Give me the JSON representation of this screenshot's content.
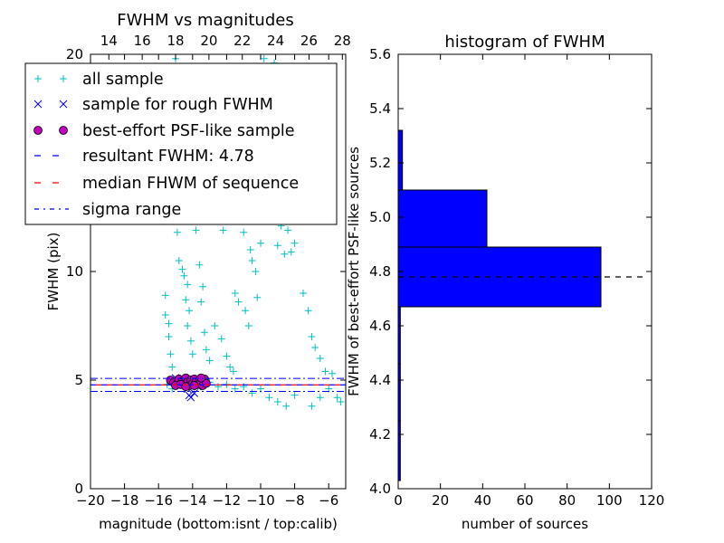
{
  "chart_data": [
    {
      "type": "scatter",
      "title": "FWHM vs magnitudes",
      "xlabel": "magnitude (bottom:isnt / top:calib)",
      "ylabel": "FWHM (pix)",
      "xlim": [
        -20,
        -5
      ],
      "ylim": [
        0,
        20
      ],
      "top_xlim": [
        12.9,
        28.2
      ],
      "x_ticks": [
        -20,
        -18,
        -16,
        -14,
        -12,
        -10,
        -8,
        -6
      ],
      "x_tick_labels": [
        "−20",
        "−18",
        "−16",
        "−14",
        "−12",
        "−10",
        "−8",
        "−6"
      ],
      "top_ticks": [
        14,
        16,
        18,
        20,
        22,
        24,
        26,
        28
      ],
      "y_ticks": [
        0,
        5,
        10,
        20
      ],
      "y_tick_labels": [
        "0",
        "5",
        "10",
        "20"
      ],
      "grid": false,
      "legend_position": "top-left",
      "legend": [
        {
          "label": "all sample",
          "style": "plus",
          "color": "#00bfbf"
        },
        {
          "label": "sample for rough FWHM",
          "style": "x",
          "color": "#0000ff"
        },
        {
          "label": "best-effort PSF-like sample",
          "style": "circle",
          "color": "#bf00bf"
        },
        {
          "label": "resultant FWHM: 4.78",
          "style": "dashed",
          "color": "#0000ff"
        },
        {
          "label": "median FHWM of sequence",
          "style": "dashed",
          "color": "#ff0000"
        },
        {
          "label": "sigma range",
          "style": "dashdot",
          "color": "#0000ff"
        }
      ],
      "hlines": {
        "resultant_fwhm": 4.78,
        "median_fwhm": 4.78,
        "sigma_range": [
          4.48,
          5.08
        ]
      },
      "series": [
        {
          "name": "all sample",
          "marker": "plus",
          "color": "#00bfbf",
          "points": [
            [
              -15.6,
              8.9
            ],
            [
              -15.6,
              8.0
            ],
            [
              -15.4,
              7.6
            ],
            [
              -15.4,
              7.0
            ],
            [
              -15.3,
              6.2
            ],
            [
              -15.2,
              5.6
            ],
            [
              -15.3,
              4.9
            ],
            [
              -15.2,
              4.6
            ],
            [
              -15.0,
              19.8
            ],
            [
              -14.7,
              14.6
            ],
            [
              -14.8,
              14.1
            ],
            [
              -14.5,
              13.3
            ],
            [
              -14.4,
              12.5
            ],
            [
              -14.9,
              11.8
            ],
            [
              -14.8,
              10.5
            ],
            [
              -14.6,
              10.1
            ],
            [
              -14.5,
              9.8
            ],
            [
              -14.3,
              9.4
            ],
            [
              -14.4,
              8.7
            ],
            [
              -14.2,
              8.2
            ],
            [
              -14.3,
              7.5
            ],
            [
              -14.1,
              6.8
            ],
            [
              -14.0,
              6.2
            ],
            [
              -13.9,
              12.9
            ],
            [
              -13.8,
              11.9
            ],
            [
              -13.6,
              10.3
            ],
            [
              -13.4,
              9.3
            ],
            [
              -13.5,
              8.6
            ],
            [
              -13.3,
              7.2
            ],
            [
              -13.2,
              6.4
            ],
            [
              -13.0,
              5.9
            ],
            [
              -12.6,
              12.5
            ],
            [
              -12.2,
              11.9
            ],
            [
              -12.7,
              7.5
            ],
            [
              -12.3,
              6.9
            ],
            [
              -12.0,
              6.1
            ],
            [
              -11.8,
              5.6
            ],
            [
              -11.6,
              5.4
            ],
            [
              -11.2,
              15.7
            ],
            [
              -11.0,
              11.8
            ],
            [
              -10.6,
              11.0
            ],
            [
              -10.5,
              10.5
            ],
            [
              -10.3,
              10.0
            ],
            [
              -11.5,
              9.0
            ],
            [
              -11.3,
              8.6
            ],
            [
              -10.9,
              8.2
            ],
            [
              -10.7,
              7.5
            ],
            [
              -10.2,
              8.8
            ],
            [
              -10.0,
              11.3
            ],
            [
              -9.8,
              19.8
            ],
            [
              -9.6,
              14.5
            ],
            [
              -9.5,
              13.5
            ],
            [
              -9.2,
              19.6
            ],
            [
              -9.3,
              16.3
            ],
            [
              -9.1,
              17.3
            ],
            [
              -9.0,
              11.2
            ],
            [
              -8.8,
              13.6
            ],
            [
              -8.8,
              12.1
            ],
            [
              -8.6,
              10.8
            ],
            [
              -8.4,
              11.9
            ],
            [
              -8.2,
              10.9
            ],
            [
              -8.0,
              11.3
            ],
            [
              -7.5,
              9.0
            ],
            [
              -7.2,
              8.2
            ],
            [
              -7.0,
              7.0
            ],
            [
              -6.8,
              6.5
            ],
            [
              -6.5,
              6.0
            ],
            [
              -6.2,
              5.4
            ],
            [
              -6.0,
              4.6
            ],
            [
              -5.8,
              5.3
            ],
            [
              -5.5,
              4.2
            ],
            [
              -5.3,
              4.0
            ],
            [
              -6.5,
              4.2
            ],
            [
              -7.0,
              3.8
            ],
            [
              -8.0,
              4.3
            ],
            [
              -8.5,
              3.8
            ],
            [
              -9.0,
              4.0
            ],
            [
              -9.5,
              4.2
            ],
            [
              -10.0,
              4.6
            ],
            [
              -10.5,
              4.4
            ],
            [
              -11.0,
              4.7
            ],
            [
              -11.5,
              4.6
            ],
            [
              -12.0,
              4.8
            ],
            [
              -12.5,
              4.7
            ],
            [
              -13.0,
              4.9
            ],
            [
              -13.5,
              4.8
            ],
            [
              -14.0,
              5.0
            ],
            [
              -14.5,
              4.7
            ],
            [
              -15.0,
              5.0
            ],
            [
              -15.5,
              4.8
            ]
          ]
        },
        {
          "name": "sample for rough FWHM",
          "marker": "x",
          "color": "#0000ff",
          "points": [
            [
              -14.2,
              4.3
            ],
            [
              -14.1,
              4.2
            ],
            [
              -13.9,
              4.4
            ],
            [
              -14.3,
              4.6
            ],
            [
              -13.7,
              4.7
            ],
            [
              -14.6,
              4.9
            ],
            [
              -15.0,
              5.1
            ],
            [
              -14.0,
              5.0
            ],
            [
              -13.5,
              4.8
            ]
          ]
        },
        {
          "name": "best-effort PSF-like sample",
          "marker": "circle",
          "color": "#bf00bf",
          "points": [
            [
              -15.3,
              5.0
            ],
            [
              -15.1,
              4.9
            ],
            [
              -14.9,
              4.85
            ],
            [
              -14.8,
              5.05
            ],
            [
              -14.6,
              4.95
            ],
            [
              -14.5,
              4.8
            ],
            [
              -14.4,
              5.1
            ],
            [
              -14.3,
              4.9
            ],
            [
              -14.2,
              4.75
            ],
            [
              -14.1,
              5.0
            ],
            [
              -14.0,
              4.85
            ],
            [
              -13.9,
              5.05
            ],
            [
              -13.8,
              4.9
            ],
            [
              -13.7,
              4.8
            ],
            [
              -13.6,
              5.0
            ],
            [
              -13.5,
              4.9
            ],
            [
              -13.4,
              4.75
            ],
            [
              -13.3,
              5.05
            ],
            [
              -13.2,
              4.85
            ],
            [
              -15.0,
              4.75
            ],
            [
              -14.7,
              4.8
            ],
            [
              -13.9,
              4.75
            ],
            [
              -13.5,
              5.1
            ],
            [
              -14.4,
              4.7
            ]
          ]
        }
      ]
    },
    {
      "type": "bar",
      "orientation": "horizontal",
      "title": "histogram of FWHM",
      "xlabel": "number of sources",
      "ylabel": "FWHM of best-effort PSF-like sources",
      "xlim": [
        0,
        120
      ],
      "ylim": [
        4.0,
        5.6
      ],
      "x_ticks": [
        0,
        20,
        40,
        60,
        80,
        100,
        120
      ],
      "y_ticks": [
        4.0,
        4.2,
        4.4,
        4.6,
        4.8,
        5.0,
        5.2,
        5.4,
        5.6
      ],
      "y_tick_labels": [
        "4.0",
        "4.2",
        "4.4",
        "4.6",
        "4.8",
        "5.0",
        "5.2",
        "5.4",
        "5.6"
      ],
      "grid": false,
      "bar_color": "#0000ff",
      "bins": [
        {
          "low": 4.03,
          "high": 4.25,
          "count": 1
        },
        {
          "low": 4.25,
          "high": 4.46,
          "count": 1
        },
        {
          "low": 4.46,
          "high": 4.67,
          "count": 1
        },
        {
          "low": 4.67,
          "high": 4.89,
          "count": 96
        },
        {
          "low": 4.89,
          "high": 5.1,
          "count": 42
        },
        {
          "low": 5.1,
          "high": 5.32,
          "count": 2
        }
      ],
      "hline": {
        "y": 4.78,
        "style": "dashed",
        "color": "#000000"
      }
    }
  ]
}
